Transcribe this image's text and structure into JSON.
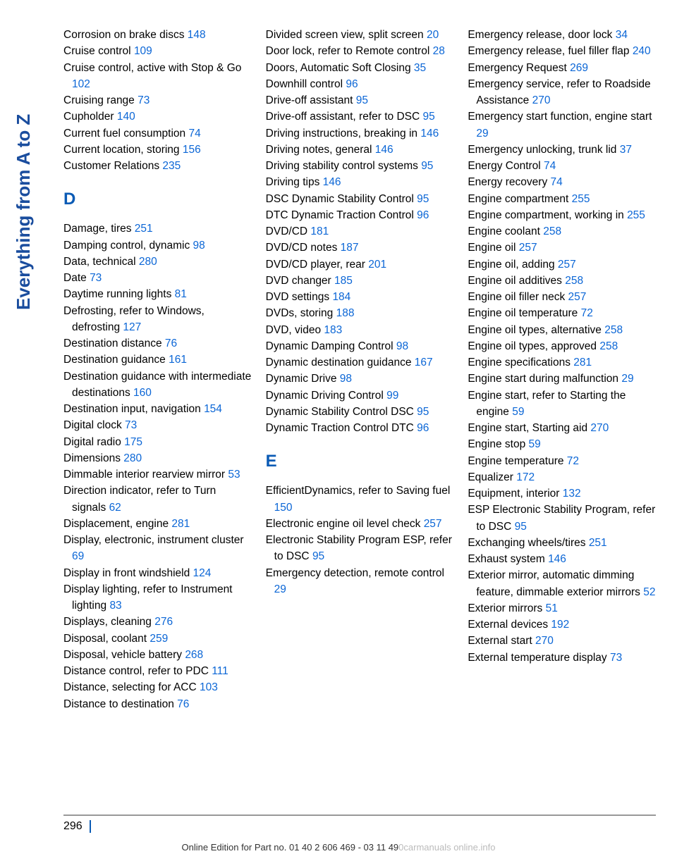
{
  "side_label": "Everything from A to Z",
  "page_number": "296",
  "bottom_text_prefix": "Online Edition for Part no. 01 40 2 606 469 - 03 11 49",
  "bottom_text_watermark": "0carmanuals online.info",
  "colors": {
    "link": "#0b66d6",
    "header": "#0b5bb5",
    "side": "#1a4d9e",
    "text": "#000000",
    "hr": "#999999"
  },
  "columns": [
    {
      "entries": [
        {
          "text": "Corrosion on brake discs ",
          "page": "148"
        },
        {
          "text": "Cruise control ",
          "page": "109"
        },
        {
          "text": "Cruise control, active with Stop & Go ",
          "page": "102"
        },
        {
          "text": "Cruising range ",
          "page": "73"
        },
        {
          "text": "Cupholder ",
          "page": "140"
        },
        {
          "text": "Current fuel consumption ",
          "page": "74"
        },
        {
          "text": "Current location, storing ",
          "page": "156"
        },
        {
          "text": "Customer Relations ",
          "page": "235"
        },
        {
          "header": "D"
        },
        {
          "text": "Damage, tires ",
          "page": "251"
        },
        {
          "text": "Damping control, dynamic ",
          "page": "98"
        },
        {
          "text": "Data, technical ",
          "page": "280"
        },
        {
          "text": "Date ",
          "page": "73"
        },
        {
          "text": "Daytime running lights ",
          "page": "81"
        },
        {
          "text": "Defrosting, refer to Windows, defrosting ",
          "page": "127"
        },
        {
          "text": "Destination distance ",
          "page": "76"
        },
        {
          "text": "Destination guidance ",
          "page": "161"
        },
        {
          "text": "Destination guidance with intermediate destinations ",
          "page": "160"
        },
        {
          "text": "Destination input, navigation ",
          "page": "154"
        },
        {
          "text": "Digital clock ",
          "page": "73"
        },
        {
          "text": "Digital radio ",
          "page": "175"
        },
        {
          "text": "Dimensions ",
          "page": "280"
        },
        {
          "text": "Dimmable interior rearview mirror ",
          "page": "53"
        },
        {
          "text": "Direction indicator, refer to Turn signals ",
          "page": "62"
        },
        {
          "text": "Displacement, engine ",
          "page": "281"
        },
        {
          "text": "Display, electronic, instrument cluster ",
          "page": "69"
        },
        {
          "text": "Display in front windshield ",
          "page": "124"
        },
        {
          "text": "Display lighting, refer to Instrument lighting ",
          "page": "83"
        },
        {
          "text": "Displays, cleaning ",
          "page": "276"
        },
        {
          "text": "Disposal, coolant ",
          "page": "259"
        },
        {
          "text": "Disposal, vehicle battery ",
          "page": "268"
        },
        {
          "text": "Distance control, refer to PDC ",
          "page": "111"
        },
        {
          "text": "Distance, selecting for ACC ",
          "page": "103"
        },
        {
          "text": "Distance to destination ",
          "page": "76"
        }
      ]
    },
    {
      "entries": [
        {
          "text": "Divided screen view, split screen ",
          "page": "20"
        },
        {
          "text": "Door lock, refer to Remote control ",
          "page": "28"
        },
        {
          "text": "Doors, Automatic Soft Closing ",
          "page": "35"
        },
        {
          "text": "Downhill control ",
          "page": "96"
        },
        {
          "text": "Drive-off assistant ",
          "page": "95"
        },
        {
          "text": "Drive-off assistant, refer to DSC ",
          "page": "95"
        },
        {
          "text": "Driving instructions, breaking in ",
          "page": "146"
        },
        {
          "text": "Driving notes, general ",
          "page": "146"
        },
        {
          "text": "Driving stability control systems ",
          "page": "95"
        },
        {
          "text": "Driving tips ",
          "page": "146"
        },
        {
          "text": "DSC Dynamic Stability Control ",
          "page": "95"
        },
        {
          "text": "DTC Dynamic Traction Control ",
          "page": "96"
        },
        {
          "text": "DVD/CD ",
          "page": "181"
        },
        {
          "text": "DVD/CD notes ",
          "page": "187"
        },
        {
          "text": "DVD/CD player, rear ",
          "page": "201"
        },
        {
          "text": "DVD changer ",
          "page": "185"
        },
        {
          "text": "DVD settings ",
          "page": "184"
        },
        {
          "text": "DVDs, storing ",
          "page": "188"
        },
        {
          "text": "DVD, video ",
          "page": "183"
        },
        {
          "text": "Dynamic Damping Control ",
          "page": "98"
        },
        {
          "text": "Dynamic destination guidance ",
          "page": "167"
        },
        {
          "text": "Dynamic Drive ",
          "page": "98"
        },
        {
          "text": "Dynamic Driving Control ",
          "page": "99"
        },
        {
          "text": "Dynamic Stability Control DSC ",
          "page": "95"
        },
        {
          "text": "Dynamic Traction Control DTC ",
          "page": "96"
        },
        {
          "header": "E"
        },
        {
          "text": "EfficientDynamics, refer to Saving fuel ",
          "page": "150"
        },
        {
          "text": "Electronic engine oil level check ",
          "page": "257"
        },
        {
          "text": "Electronic Stability Program ESP, refer to DSC ",
          "page": "95"
        },
        {
          "text": "Emergency detection, remote control ",
          "page": "29"
        }
      ]
    },
    {
      "entries": [
        {
          "text": "Emergency release, door lock ",
          "page": "34"
        },
        {
          "text": "Emergency release, fuel filler flap ",
          "page": "240"
        },
        {
          "text": "Emergency Request ",
          "page": "269"
        },
        {
          "text": "Emergency service, refer to Roadside Assistance ",
          "page": "270"
        },
        {
          "text": "Emergency start function, engine start ",
          "page": "29"
        },
        {
          "text": "Emergency unlocking, trunk lid ",
          "page": "37"
        },
        {
          "text": "Energy Control ",
          "page": "74"
        },
        {
          "text": "Energy recovery ",
          "page": "74"
        },
        {
          "text": "Engine compartment ",
          "page": "255"
        },
        {
          "text": "Engine compartment, working in ",
          "page": "255"
        },
        {
          "text": "Engine coolant ",
          "page": "258"
        },
        {
          "text": "Engine oil ",
          "page": "257"
        },
        {
          "text": "Engine oil, adding ",
          "page": "257"
        },
        {
          "text": "Engine oil additives ",
          "page": "258"
        },
        {
          "text": "Engine oil filler neck ",
          "page": "257"
        },
        {
          "text": "Engine oil temperature ",
          "page": "72"
        },
        {
          "text": "Engine oil types, alternative ",
          "page": "258"
        },
        {
          "text": "Engine oil types, approved ",
          "page": "258"
        },
        {
          "text": "Engine specifications ",
          "page": "281"
        },
        {
          "text": "Engine start during malfunction ",
          "page": "29"
        },
        {
          "text": "Engine start, refer to Starting the engine ",
          "page": "59"
        },
        {
          "text": "Engine start, Starting aid ",
          "page": "270"
        },
        {
          "text": "Engine stop ",
          "page": "59"
        },
        {
          "text": "Engine temperature ",
          "page": "72"
        },
        {
          "text": "Equalizer ",
          "page": "172"
        },
        {
          "text": "Equipment, interior ",
          "page": "132"
        },
        {
          "text": "ESP Electronic Stability Program, refer to DSC ",
          "page": "95"
        },
        {
          "text": "Exchanging wheels/tires ",
          "page": "251"
        },
        {
          "text": "Exhaust system ",
          "page": "146"
        },
        {
          "text": "Exterior mirror, automatic dimming feature, dimmable exterior mirrors ",
          "page": "52"
        },
        {
          "text": "Exterior mirrors ",
          "page": "51"
        },
        {
          "text": "External devices ",
          "page": "192"
        },
        {
          "text": "External start ",
          "page": "270"
        },
        {
          "text": "External temperature display ",
          "page": "73"
        }
      ]
    }
  ]
}
